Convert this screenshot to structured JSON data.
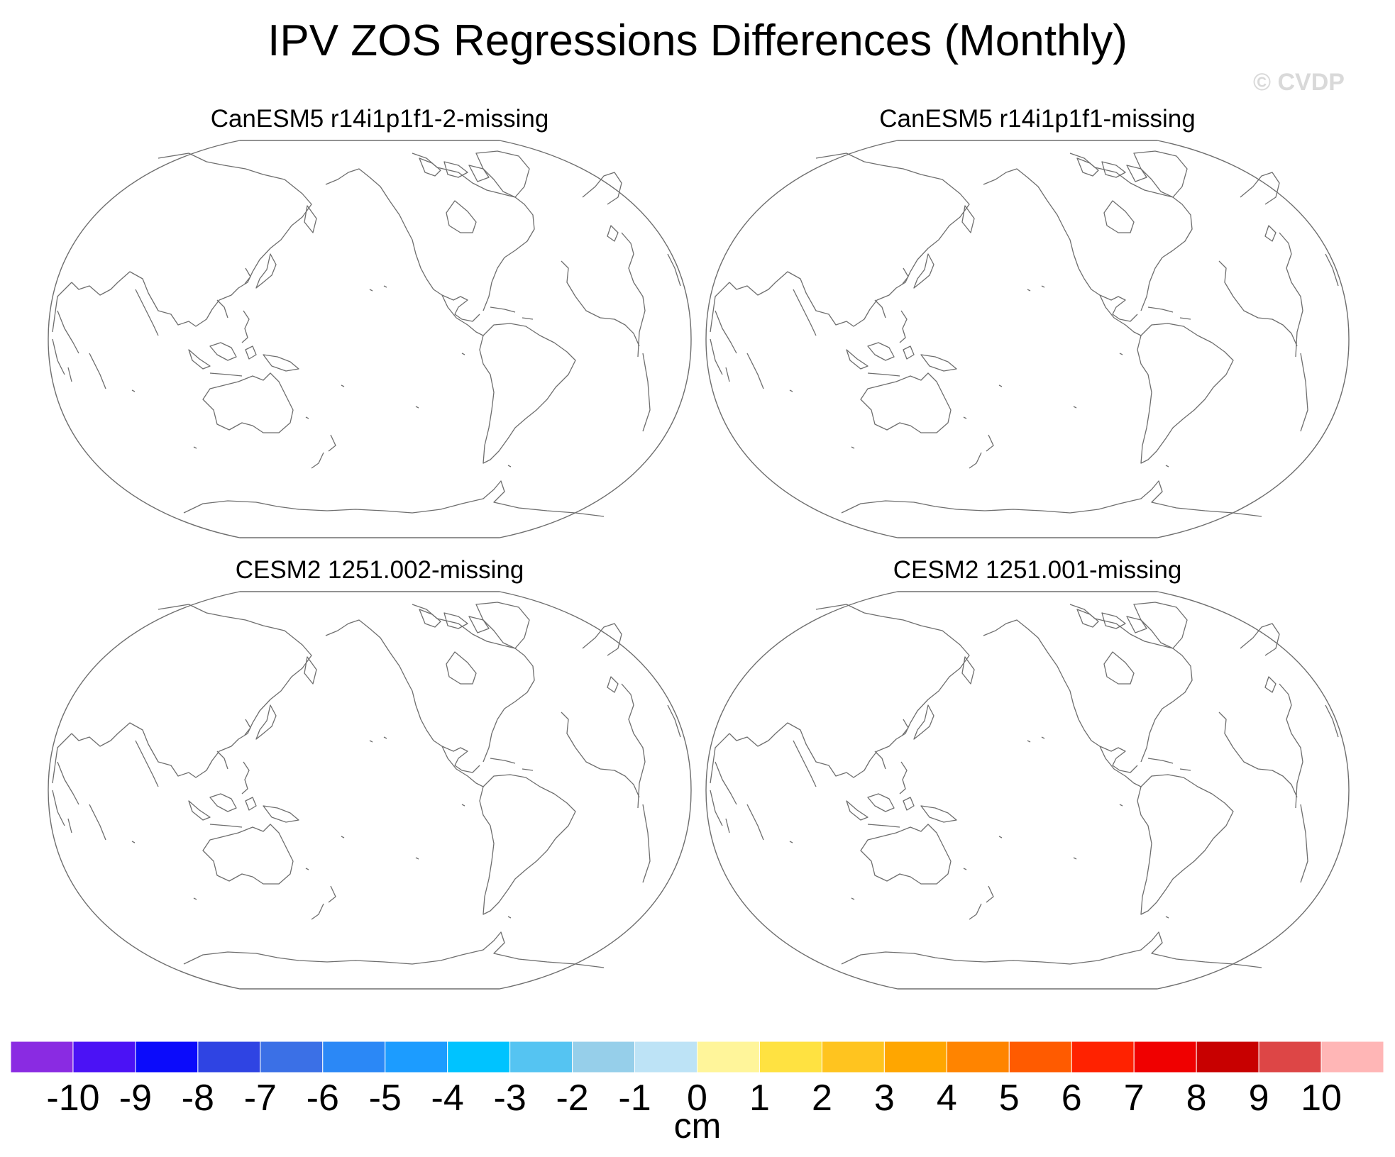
{
  "title": "IPV ZOS Regressions Differences (Monthly)",
  "watermark": "© CVDP",
  "panels": [
    {
      "label": "CanESM5 r14i1p1f1-2-missing"
    },
    {
      "label": "CanESM5 r14i1p1f1-missing"
    },
    {
      "label": "CESM2 1251.002-missing"
    },
    {
      "label": "CESM2 1251.001-missing"
    }
  ],
  "colorbar": {
    "units": "cm",
    "tick_labels": [
      "-10",
      "-9",
      "-8",
      "-7",
      "-6",
      "-5",
      "-4",
      "-3",
      "-2",
      "-1",
      "0",
      "1",
      "2",
      "3",
      "4",
      "5",
      "6",
      "7",
      "8",
      "9",
      "10"
    ],
    "colors": [
      "#8a2be2",
      "#4b12f5",
      "#0b0bfb",
      "#2f44e3",
      "#3b70e6",
      "#2b88f6",
      "#1c9cff",
      "#00c3ff",
      "#55c4f2",
      "#96cfea",
      "#bde3f6",
      "#fff59a",
      "#ffe241",
      "#ffc41f",
      "#ffa600",
      "#ff8400",
      "#ff5b00",
      "#ff2200",
      "#f00000",
      "#c80000",
      "#dd4646",
      "#ffb6b6"
    ]
  }
}
